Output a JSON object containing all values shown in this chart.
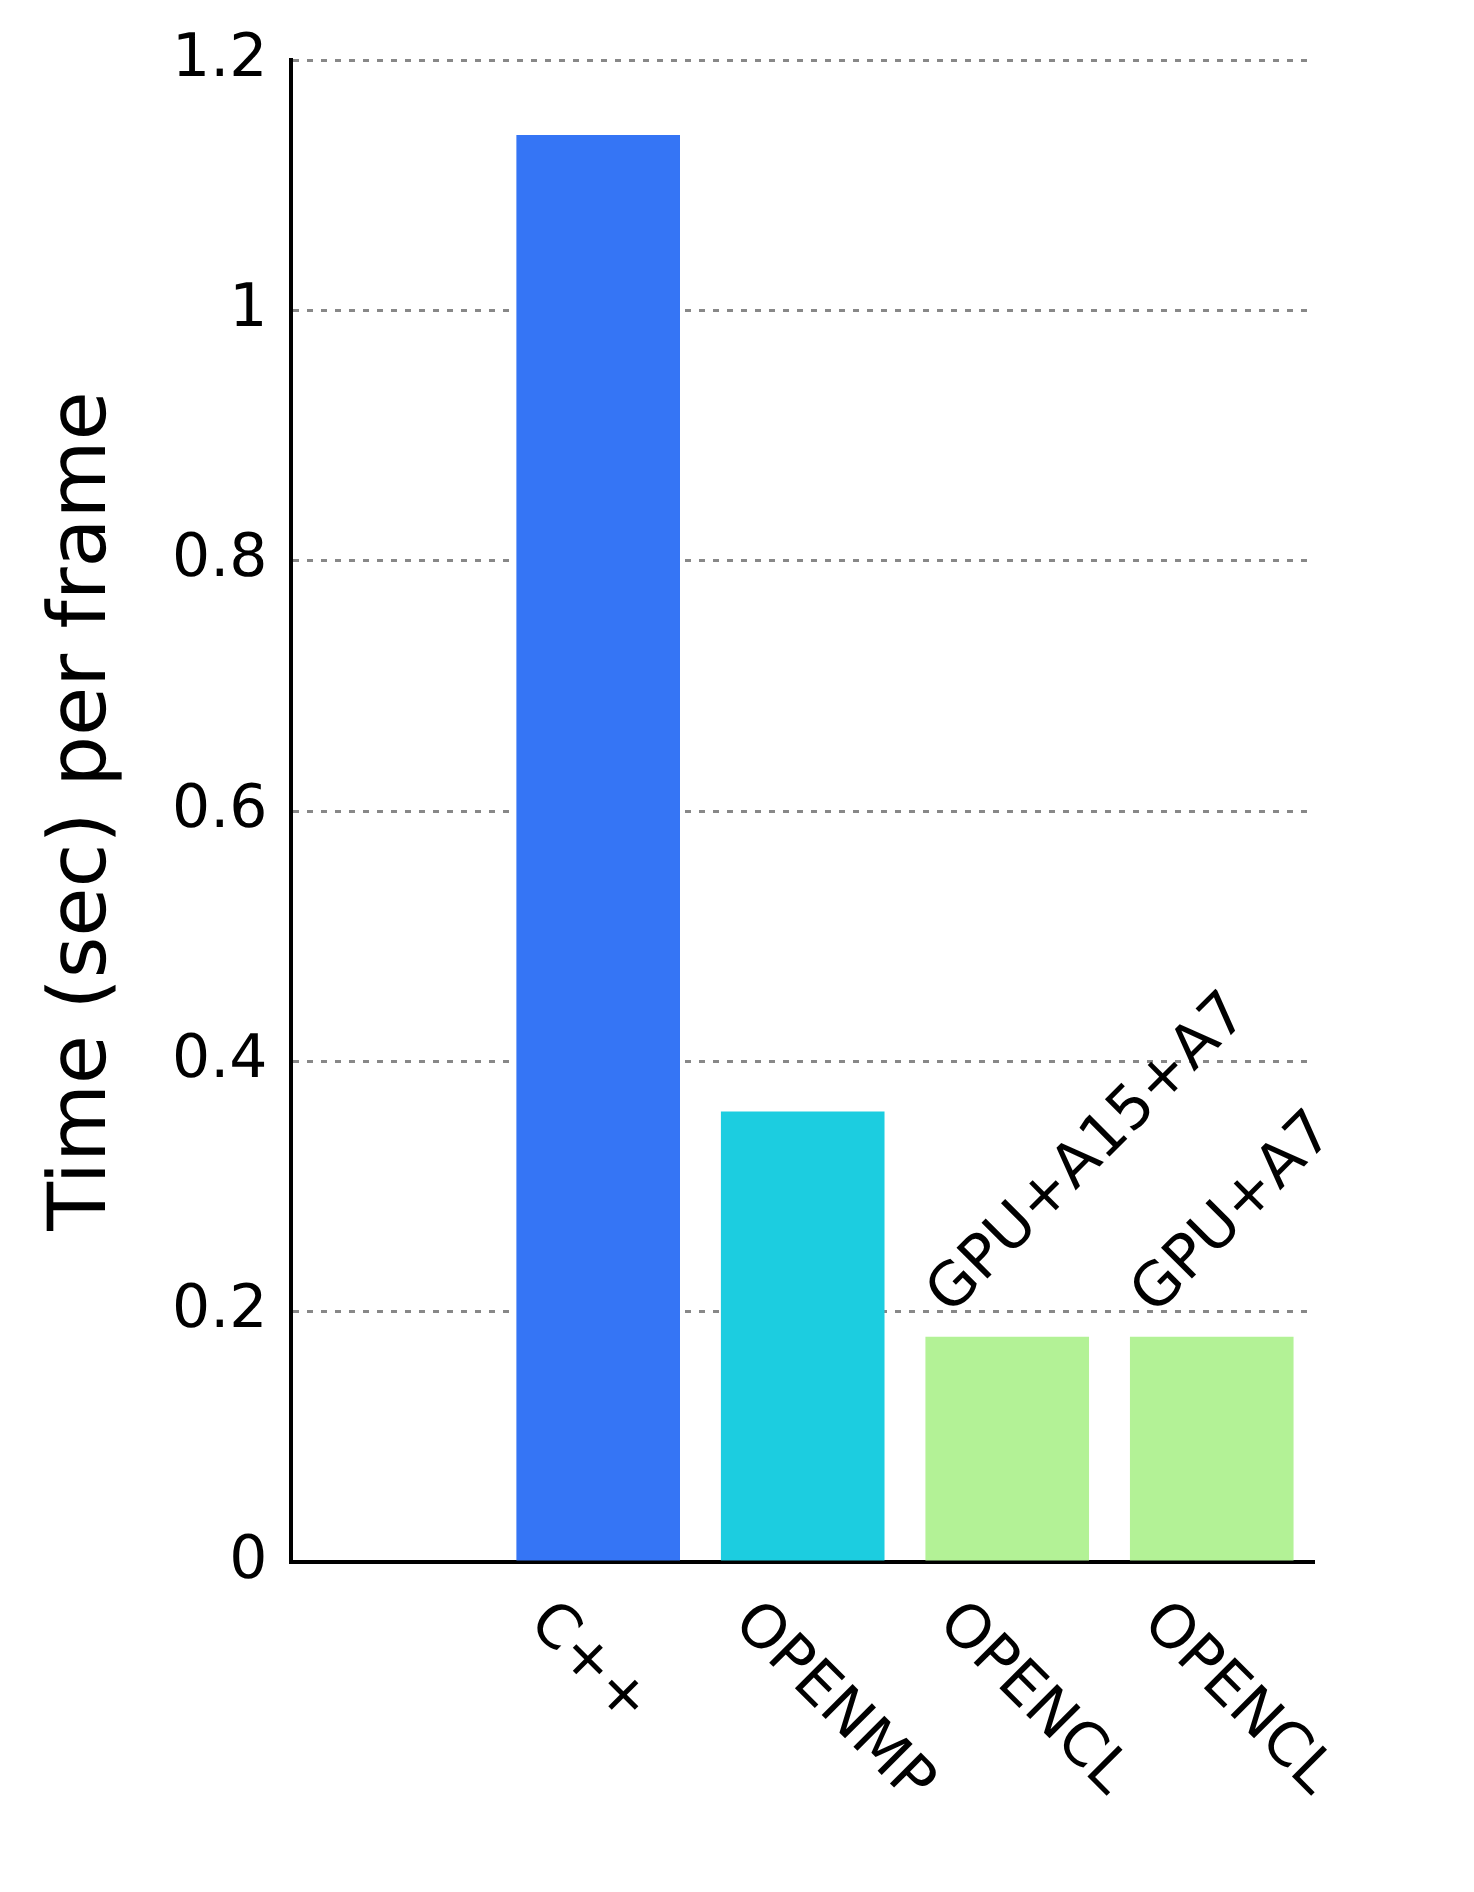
{
  "chart_data": {
    "type": "bar",
    "ylabel": "Time (sec) per frame",
    "categories": [
      null,
      "C++",
      "OPENMP",
      "OPENCL",
      "OPENCL"
    ],
    "values": [
      null,
      1.14,
      0.36,
      0.18,
      0.18
    ],
    "colors": [
      "#3575f5",
      "#3575f5",
      "#1ccde0",
      "#b3f296",
      "#b3f296"
    ],
    "ylim": [
      0,
      1.2
    ],
    "yticks": [
      0,
      0.2,
      0.4,
      0.6,
      0.8,
      1,
      1.2
    ],
    "grid": "y",
    "legend": false,
    "annotations": [
      {
        "text": "GPU+A15+A7",
        "x": "OPENCL",
        "y": 0.18
      },
      {
        "text": "GPU+A7",
        "x": "OPENCL",
        "y": 0.18
      }
    ]
  }
}
